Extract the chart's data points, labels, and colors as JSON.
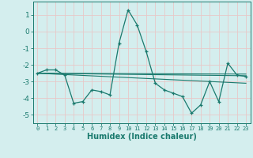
{
  "xlabel": "Humidex (Indice chaleur)",
  "background_color": "#d4eeee",
  "grid_color": "#c0dede",
  "line_color": "#1a7a6e",
  "xlim": [
    -0.5,
    23.5
  ],
  "ylim": [
    -5.5,
    1.8
  ],
  "yticks": [
    1,
    0,
    -1,
    -2,
    -3,
    -4,
    -5
  ],
  "xticks": [
    0,
    1,
    2,
    3,
    4,
    5,
    6,
    7,
    8,
    9,
    10,
    11,
    12,
    13,
    14,
    15,
    16,
    17,
    18,
    19,
    20,
    21,
    22,
    23
  ],
  "series1_x": [
    0,
    1,
    2,
    3,
    4,
    5,
    6,
    7,
    8,
    9,
    10,
    11,
    12,
    13,
    14,
    15,
    16,
    17,
    18,
    19,
    20,
    21,
    22,
    23
  ],
  "series1_y": [
    -2.5,
    -2.3,
    -2.3,
    -2.6,
    -4.3,
    -4.2,
    -3.5,
    -3.6,
    -3.8,
    -0.7,
    1.3,
    0.4,
    -1.2,
    -3.1,
    -3.5,
    -3.7,
    -3.9,
    -4.9,
    -4.4,
    -3.0,
    -4.2,
    -1.9,
    -2.6,
    -2.7
  ],
  "series2_x": [
    0,
    23
  ],
  "series2_y": [
    -2.5,
    -2.65
  ],
  "series3_x": [
    0,
    23
  ],
  "series3_y": [
    -2.5,
    -3.1
  ],
  "series4_x": [
    0,
    23
  ],
  "series4_y": [
    -2.5,
    -2.55
  ]
}
